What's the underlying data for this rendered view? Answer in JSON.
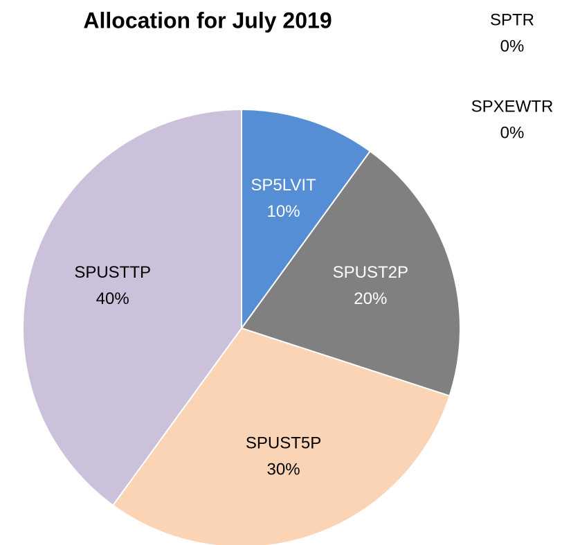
{
  "chart_data": {
    "type": "pie",
    "title": "Allocation for July 2019",
    "categories": [
      "SPTR",
      "SPXEWTR",
      "SP5LVIT",
      "SPUST2P",
      "SPUST5P",
      "SPUSTTP"
    ],
    "values": [
      0,
      0,
      10,
      20,
      30,
      40
    ],
    "value_labels": [
      "0%",
      "0%",
      "10%",
      "20%",
      "30%",
      "40%"
    ],
    "colors": [
      "#4f81bd",
      "#c0504d",
      "#558ed5",
      "#808080",
      "#fad4b4",
      "#ccc1da"
    ]
  }
}
